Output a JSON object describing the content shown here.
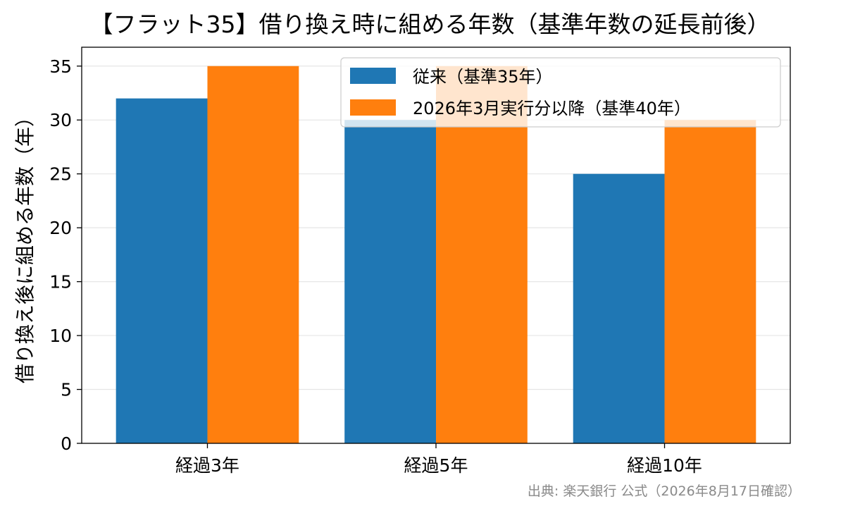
{
  "chart_data": {
    "type": "bar",
    "title": "【フラット35】借り換え時に組める年数（基準年数の延長前後）",
    "xlabel": "",
    "ylabel": "借り換え後に組める年数（年）",
    "categories": [
      "経過3年",
      "経過5年",
      "経過10年"
    ],
    "series": [
      {
        "name": "従来（基準35年）",
        "values": [
          32,
          30,
          25
        ],
        "color": "#1f77b4"
      },
      {
        "name": "2026年3月実行分以降（基準40年）",
        "values": [
          35,
          35,
          30
        ],
        "color": "#ff7f0e"
      }
    ],
    "ylim": [
      0,
      36.75
    ],
    "yticks": [
      0,
      5,
      10,
      15,
      20,
      25,
      30,
      35
    ],
    "grid": "horizontal",
    "legend_position": "top-right"
  },
  "source_note": "出典: 楽天銀行 公式（2026年8月17日確認）"
}
